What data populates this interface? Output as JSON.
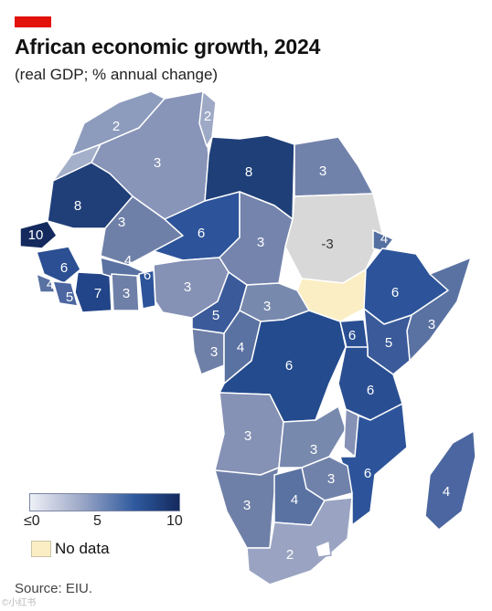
{
  "header": {
    "title": "African economic growth, 2024",
    "subtitle": "(real GDP; % annual change)"
  },
  "legend": {
    "ticks": [
      "≤0",
      "5",
      "10"
    ],
    "nodata_label": "No data",
    "colors": {
      "low": "#eef0f6",
      "mid": "#2f5a9e",
      "high": "#142a5e",
      "no_data": "#fbeec4"
    }
  },
  "source": "Source: EIU.",
  "watermark": "©小红书",
  "map_values": {
    "morocco": "2",
    "algeria": "3",
    "tunisia": "2",
    "libya": "8",
    "egypt": "3",
    "mauritania": "8",
    "mali": "3",
    "niger": "6",
    "chad": "3",
    "sudan": "-3",
    "eritrea": "4",
    "senegal": "10",
    "guinea": "6",
    "sierra_leone": "4",
    "liberia": "5",
    "ivory_coast": "7",
    "burkina_faso": "4",
    "ghana": "3",
    "benin": "6",
    "nigeria": "3",
    "cameroon": "5",
    "car": "3",
    "ethiopia": "6",
    "somalia": "3",
    "gabon": "3",
    "congo": "4",
    "drc": "6",
    "uganda": "6",
    "kenya": "5",
    "tanzania": "6",
    "angola": "3",
    "zambia": "3",
    "mozambique": "6",
    "zimbabwe": "3",
    "namibia": "3",
    "botswana": "4",
    "south_africa": "2",
    "madagascar": "4"
  }
}
